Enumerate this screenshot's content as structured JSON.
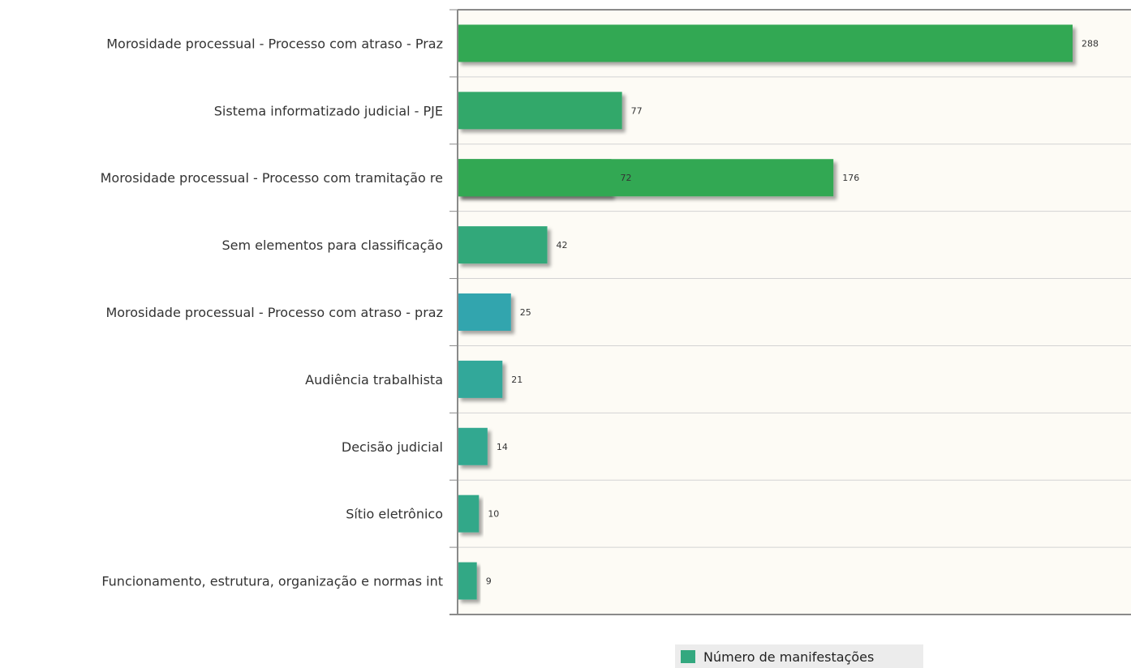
{
  "chart_data": {
    "type": "bar",
    "orientation": "horizontal",
    "categories": [
      "Morosidade processual - Processo com atraso - Praz",
      "Sistema informatizado judicial - PJE",
      "Morosidade processual - Processo com tramitação re",
      "Sem elementos para classificação",
      "Morosidade processual - Processo com atraso - praz",
      "Audiência trabalhista",
      "Decisão judicial",
      "Sítio eletrônico",
      "Funcionamento, estrutura, organização e normas int"
    ],
    "series": [
      {
        "name": "Número de manifestações",
        "values": [
          288,
          77,
          176,
          42,
          25,
          21,
          14,
          10,
          9
        ],
        "colors": [
          "#33a853",
          "#33a86b",
          "#33a853",
          "#33a87a",
          "#33a5ae",
          "#33a89a",
          "#33a890",
          "#33a889",
          "#33a885"
        ]
      }
    ],
    "overlay_labels": [
      {
        "category_index": 2,
        "value": 72
      }
    ],
    "xlim": [
      0,
      315
    ],
    "grid": true,
    "legend": "bottom-center",
    "legend_color": "#33a87f",
    "plot_background": "#fdfbf5",
    "title": "",
    "xlabel": "",
    "ylabel": ""
  }
}
